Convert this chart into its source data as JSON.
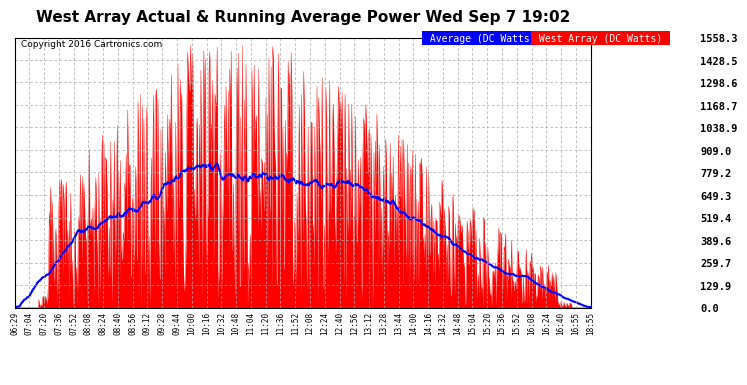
{
  "title": "West Array Actual & Running Average Power Wed Sep 7 19:02",
  "copyright": "Copyright 2016 Cartronics.com",
  "ylabel_right_values": [
    0.0,
    129.9,
    259.7,
    389.6,
    519.4,
    649.3,
    779.2,
    909.0,
    1038.9,
    1168.7,
    1298.6,
    1428.5,
    1558.3
  ],
  "ymax": 1558.3,
  "ymin": 0.0,
  "bg_color": "#ffffff",
  "plot_bg_color": "#ffffff",
  "grid_color": "#aaaaaa",
  "bar_color": "#ff0000",
  "avg_line_color": "#0000ff",
  "x_labels": [
    "06:29",
    "07:04",
    "07:20",
    "07:36",
    "07:52",
    "08:08",
    "08:24",
    "08:40",
    "08:56",
    "09:12",
    "09:28",
    "09:44",
    "10:00",
    "10:16",
    "10:32",
    "10:48",
    "11:04",
    "11:20",
    "11:36",
    "11:52",
    "12:08",
    "12:24",
    "12:40",
    "12:56",
    "13:12",
    "13:28",
    "13:44",
    "14:00",
    "14:16",
    "14:32",
    "14:48",
    "15:04",
    "15:20",
    "15:36",
    "15:52",
    "16:08",
    "16:24",
    "16:40",
    "16:55",
    "18:55"
  ]
}
